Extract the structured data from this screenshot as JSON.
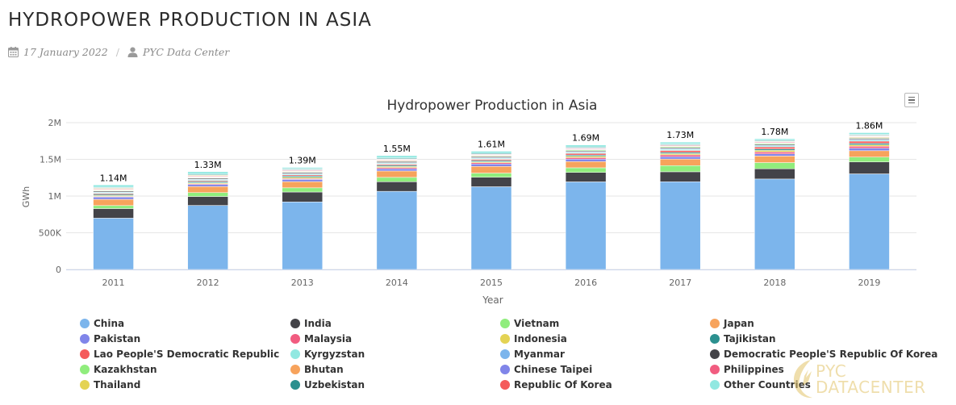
{
  "page": {
    "title": "HYDROPOWER PRODUCTION IN ASIA",
    "date": "17 January 2022",
    "separator": "/",
    "author": "PYC Data Center"
  },
  "icons": {
    "date": "calendar-icon",
    "author": "user-icon",
    "menu": "hamburger-menu-icon",
    "brand": "pyc-logo-icon"
  },
  "watermark": {
    "text": "PYC DATACENTER"
  },
  "colors": {
    "China": "#7cb5ec",
    "India": "#434348",
    "Vietnam": "#90ed7d",
    "Japan": "#f7a35c",
    "Pakistan": "#8085e9",
    "Malaysia": "#f15c80",
    "Indonesia": "#e4d354",
    "Tajikistan": "#2b908f",
    "Lao People'S Democratic Republic": "#f45b5b",
    "Kyrgyzstan": "#91e8e1",
    "Myanmar": "#7cb5ec",
    "Democratic People'S Republic Of Korea": "#434348",
    "Kazakhstan": "#90ed7d",
    "Bhutan": "#f7a35c",
    "Chinese Taipei": "#8085e9",
    "Philippines": "#f15c80",
    "Thailand": "#e4d354",
    "Uzbekistan": "#2b908f",
    "Republic Of Korea": "#f45b5b",
    "Other Countries": "#91e8e1",
    "grid": "#e6e6e6",
    "axis_text": "#666666"
  },
  "chart_data": {
    "type": "bar",
    "stacked": true,
    "title": "Hydropower Production in Asia",
    "xlabel": "Year",
    "ylabel": "GWh",
    "ylim": [
      0,
      2000000
    ],
    "yticks": [
      0,
      500000,
      1000000,
      1500000,
      2000000
    ],
    "ytick_labels": [
      "0",
      "500K",
      "1M",
      "1.5M",
      "2M"
    ],
    "grid": true,
    "legend_position": "bottom",
    "categories": [
      "2011",
      "2012",
      "2013",
      "2014",
      "2015",
      "2016",
      "2017",
      "2018",
      "2019"
    ],
    "total_labels": [
      "1.14M",
      "1.33M",
      "1.39M",
      "1.55M",
      "1.61M",
      "1.69M",
      "1.73M",
      "1.78M",
      "1.86M"
    ],
    "series": [
      {
        "name": "China",
        "values": [
          698900,
          872100,
          920000,
          1064300,
          1126700,
          1193400,
          1194700,
          1232100,
          1302100
        ]
      },
      {
        "name": "India",
        "values": [
          130500,
          122000,
          134800,
          130200,
          129200,
          128200,
          135800,
          139500,
          162100
        ]
      },
      {
        "name": "Vietnam",
        "values": [
          41000,
          52400,
          56900,
          59900,
          56500,
          63400,
          84300,
          84000,
          66300
        ]
      },
      {
        "name": "Japan",
        "values": [
          84900,
          83600,
          84900,
          87000,
          91400,
          85200,
          89500,
          89800,
          86800
        ]
      },
      {
        "name": "Pakistan",
        "values": [
          31300,
          28600,
          30000,
          31300,
          33700,
          33100,
          31400,
          29300,
          34400
        ]
      },
      {
        "name": "Malaysia",
        "values": [
          8000,
          9400,
          11300,
          14600,
          15900,
          20000,
          25000,
          26000,
          26500
        ]
      },
      {
        "name": "Indonesia",
        "values": [
          12400,
          12800,
          16900,
          15100,
          13700,
          19300,
          17000,
          21300,
          20000
        ]
      },
      {
        "name": "Tajikistan",
        "values": [
          16200,
          16700,
          16800,
          16400,
          16800,
          16500,
          17200,
          19600,
          20400
        ]
      },
      {
        "name": "Lao People'S Democratic Republic",
        "values": [
          12300,
          12900,
          15400,
          15300,
          16500,
          22300,
          25600,
          28000,
          29000
        ]
      },
      {
        "name": "Kyrgyzstan",
        "values": [
          13600,
          13900,
          12900,
          13000,
          12800,
          13300,
          14000,
          13800,
          14000
        ]
      },
      {
        "name": "Myanmar",
        "values": [
          7200,
          7800,
          8800,
          8800,
          9400,
          10100,
          10400,
          10800,
          11500
        ]
      },
      {
        "name": "Democratic People'S Republic Of Korea",
        "values": [
          13100,
          12700,
          13000,
          13300,
          12600,
          11900,
          12000,
          12600,
          13000
        ]
      },
      {
        "name": "Kazakhstan",
        "values": [
          7900,
          7600,
          7700,
          8300,
          9400,
          11600,
          11100,
          10400,
          10400
        ]
      },
      {
        "name": "Bhutan",
        "values": [
          7000,
          6600,
          7500,
          8000,
          7700,
          7800,
          7700,
          7400,
          8800
        ]
      },
      {
        "name": "Chinese Taipei",
        "values": [
          4000,
          5500,
          5200,
          4400,
          4600,
          6500,
          5400,
          4500,
          5300
        ]
      },
      {
        "name": "Philippines",
        "values": [
          9700,
          10300,
          10000,
          9100,
          8700,
          8100,
          9600,
          9400,
          8000
        ]
      },
      {
        "name": "Thailand",
        "values": [
          8000,
          8400,
          5400,
          5500,
          3800,
          4500,
          5500,
          7600,
          6500
        ]
      },
      {
        "name": "Uzbekistan",
        "values": [
          9800,
          10100,
          11200,
          11600,
          11000,
          11400,
          9300,
          9800,
          10000
        ]
      },
      {
        "name": "Republic Of Korea",
        "values": [
          5300,
          4700,
          5100,
          3100,
          2300,
          3200,
          3600,
          4000,
          4300
        ]
      },
      {
        "name": "Other Countries",
        "values": [
          29900,
          32900,
          16300,
          30800,
          27400,
          25700,
          25200,
          20100,
          23600
        ]
      }
    ]
  }
}
